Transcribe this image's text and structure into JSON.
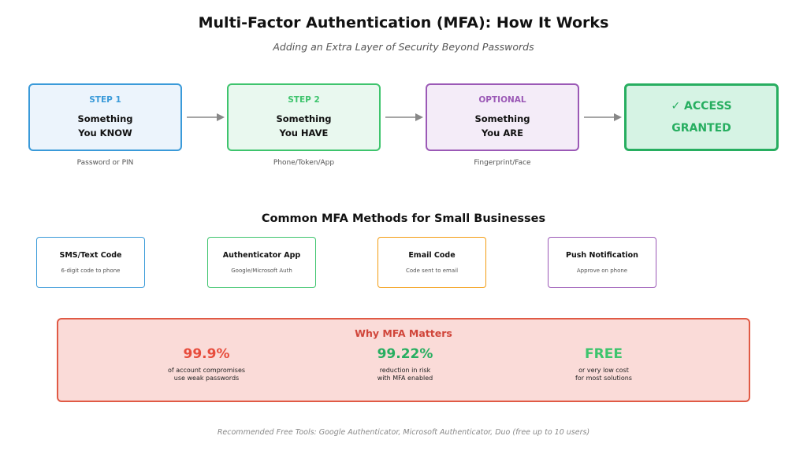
{
  "title": "Multi-Factor Authentication (MFA): How It Works",
  "subtitle": "Adding an Extra Layer of Security Beyond Passwords",
  "steps": [
    {
      "label": "STEP 1",
      "line1": "Something",
      "line2": "You KNOW",
      "sub": "Password or PIN"
    },
    {
      "label": "STEP 2",
      "line1": "Something",
      "line2": "You HAVE",
      "sub": "Phone/Token/App"
    },
    {
      "label": "OPTIONAL",
      "line1": "Something",
      "line2": "You ARE",
      "sub": "Fingerprint/Face"
    }
  ],
  "access": {
    "line1": "✓ ACCESS",
    "line2": "GRANTED"
  },
  "methods_title": "Common MFA Methods for Small Businesses",
  "methods": [
    {
      "name": "SMS/Text Code",
      "desc": "6-digit code to phone"
    },
    {
      "name": "Authenticator App",
      "desc": "Google/Microsoft Auth"
    },
    {
      "name": "Email Code",
      "desc": "Code sent to email"
    },
    {
      "name": "Push Notification",
      "desc": "Approve on phone"
    }
  ],
  "matters": {
    "title": "Why MFA Matters",
    "stats": [
      {
        "value": "99.9%",
        "line1": "of account compromises",
        "line2": "use weak passwords"
      },
      {
        "value": "99.22%",
        "line1": "reduction in risk",
        "line2": "with MFA enabled"
      },
      {
        "value": "FREE",
        "line1": "or very low cost",
        "line2": "for most solutions"
      }
    ]
  },
  "footer": "Recommended Free Tools: Google Authenticator, Microsoft Authenticator, Duo (free up to 10 users)",
  "colors": {
    "step1": "#3a9ad9",
    "step2": "#3ec46d",
    "optional": "#9b59b6",
    "access": "#27ae60",
    "matters_border": "#e05a45",
    "arrow": "#888888"
  }
}
